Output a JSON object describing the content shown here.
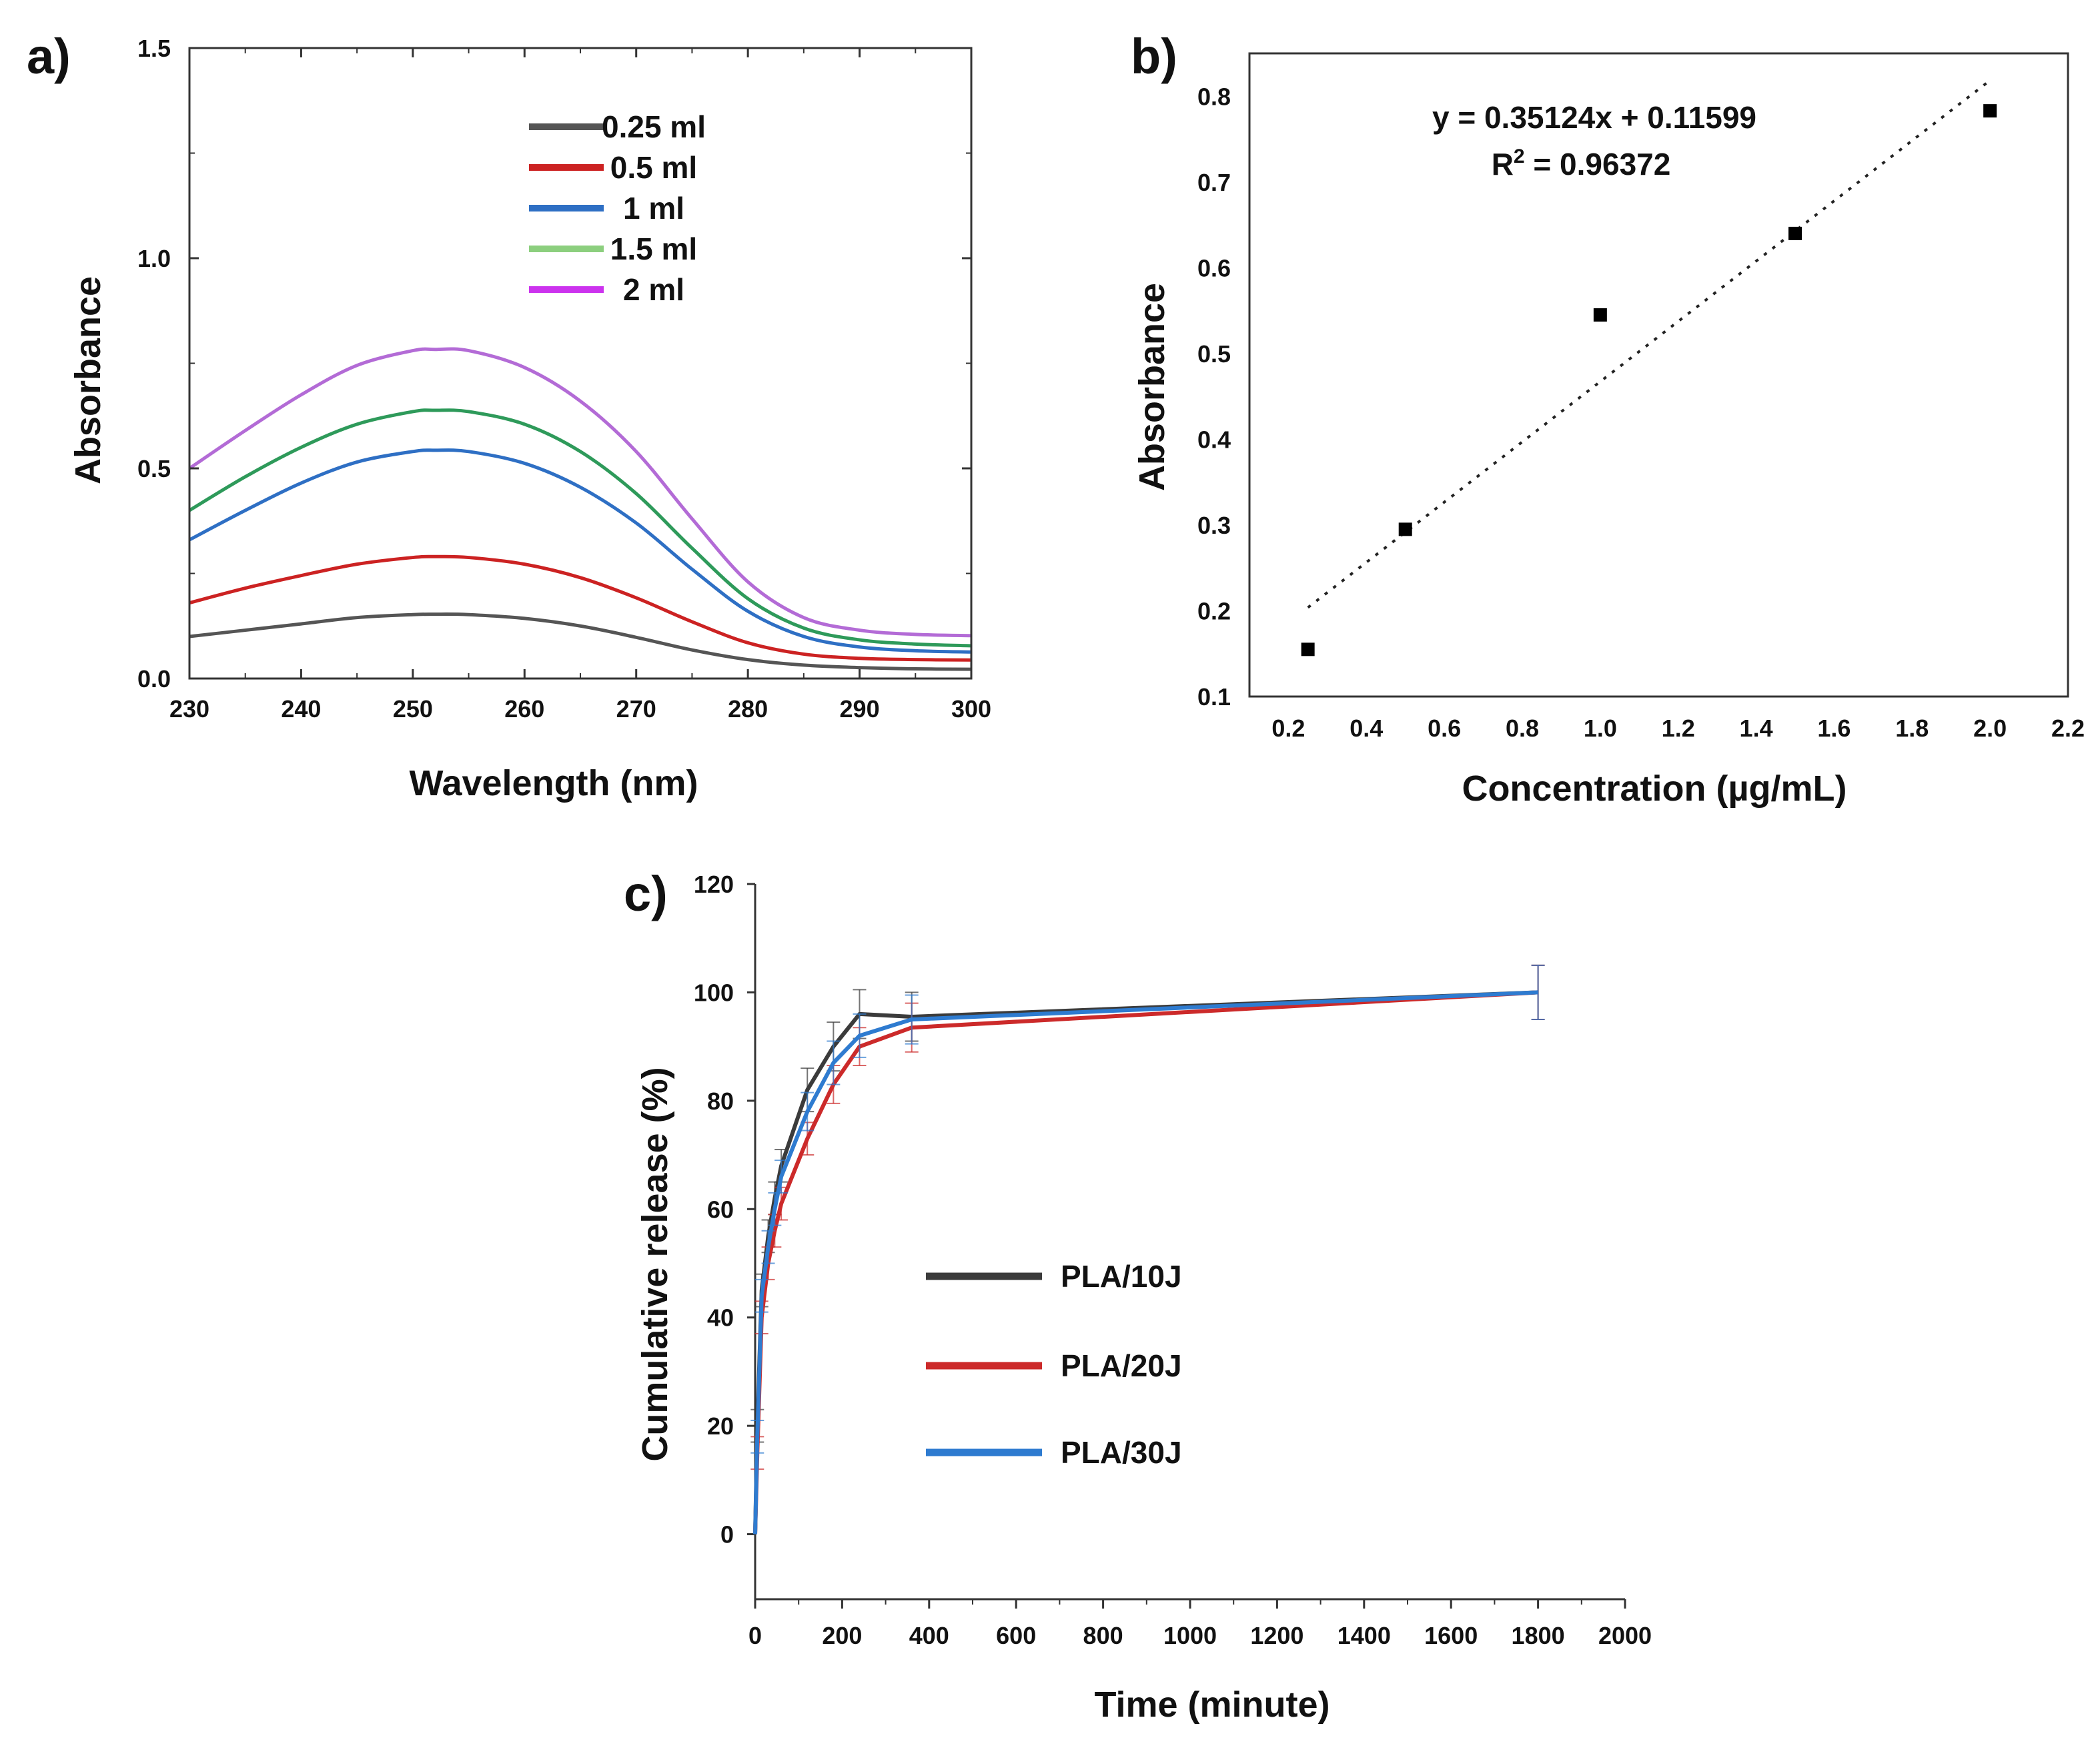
{
  "chart_data": [
    {
      "panel": "a)",
      "type": "line",
      "xlabel": "Wavelength (nm)",
      "ylabel": "Absorbance",
      "xlim": [
        230,
        300
      ],
      "ylim": [
        0.0,
        1.5
      ],
      "xticks": [
        230,
        240,
        250,
        260,
        270,
        280,
        290,
        300
      ],
      "yticks": [
        "0.0",
        "0.5",
        "1.0",
        "1.5"
      ],
      "legend_position": "top-center",
      "x": [
        230,
        235,
        240,
        245,
        250,
        252,
        255,
        260,
        265,
        270,
        275,
        280,
        285,
        290,
        295,
        300
      ],
      "series": [
        {
          "name": "0.25 ml",
          "color": "#555555",
          "values": [
            0.1,
            0.115,
            0.13,
            0.145,
            0.152,
            0.153,
            0.152,
            0.143,
            0.125,
            0.098,
            0.068,
            0.045,
            0.032,
            0.026,
            0.023,
            0.022
          ]
        },
        {
          "name": "0.5 ml",
          "color": "#cc2222",
          "values": [
            0.18,
            0.215,
            0.245,
            0.272,
            0.288,
            0.29,
            0.288,
            0.272,
            0.24,
            0.192,
            0.135,
            0.085,
            0.058,
            0.048,
            0.045,
            0.044
          ]
        },
        {
          "name": "1 ml",
          "color": "#2e6fc4",
          "values": [
            0.33,
            0.4,
            0.465,
            0.515,
            0.54,
            0.543,
            0.54,
            0.512,
            0.455,
            0.37,
            0.26,
            0.16,
            0.1,
            0.075,
            0.066,
            0.063
          ]
        },
        {
          "name": "1.5 ml",
          "color": "#2e9a5a",
          "legend_color": "#8ccf7e",
          "values": [
            0.4,
            0.48,
            0.55,
            0.605,
            0.635,
            0.638,
            0.635,
            0.605,
            0.54,
            0.44,
            0.31,
            0.19,
            0.12,
            0.092,
            0.082,
            0.078
          ]
        },
        {
          "name": "2 ml",
          "color": "#b36bd6",
          "legend_color": "#cc33ee",
          "values": [
            0.5,
            0.59,
            0.675,
            0.745,
            0.78,
            0.783,
            0.78,
            0.74,
            0.66,
            0.54,
            0.38,
            0.23,
            0.145,
            0.115,
            0.105,
            0.102
          ]
        }
      ]
    },
    {
      "panel": "b)",
      "type": "scatter",
      "xlabel": "Concentration  (µg/mL)",
      "ylabel": "Absorbance",
      "xlim": [
        0.1,
        2.2
      ],
      "ylim": [
        0.1,
        0.85
      ],
      "xticks": [
        "0.2",
        "0.4",
        "0.6",
        "0.8",
        "1.0",
        "1.2",
        "1.4",
        "1.6",
        "1.8",
        "2.0",
        "2.2"
      ],
      "yticks": [
        "0.1",
        "0.2",
        "0.3",
        "0.4",
        "0.5",
        "0.6",
        "0.7",
        "0.8"
      ],
      "x": [
        0.25,
        0.5,
        1.0,
        1.5,
        2.0
      ],
      "y": [
        0.155,
        0.295,
        0.545,
        0.64,
        0.783
      ],
      "fit": {
        "slope": 0.35124,
        "intercept": 0.11599,
        "equation": "y = 0.35124x + 0.11599",
        "r2_prefix": "R",
        "r2_sup": "2",
        "r2_value": " = 0.96372"
      }
    },
    {
      "panel": "c)",
      "type": "line",
      "xlabel": "Time (minute)",
      "ylabel": "Cumulative release (%)",
      "xlim": [
        0,
        2000
      ],
      "ylim": [
        -12,
        120
      ],
      "xticks": [
        0,
        200,
        400,
        600,
        800,
        1000,
        1200,
        1400,
        1600,
        1800,
        2000
      ],
      "yticks": [
        0,
        20,
        40,
        60,
        80,
        100,
        120
      ],
      "legend_position": "center-left",
      "x": [
        0,
        5,
        15,
        30,
        45,
        60,
        120,
        180,
        240,
        360,
        1800
      ],
      "series": [
        {
          "name": "PLA/10J",
          "color": "#3b3b3b",
          "values": [
            0,
            20,
            45,
            55,
            62,
            68,
            82,
            90,
            96,
            95.5,
            100
          ],
          "errors": [
            0,
            3,
            3,
            3,
            3,
            3,
            4,
            4.5,
            4.5,
            4.5,
            5
          ]
        },
        {
          "name": "PLA/20J",
          "color": "#cc2a2a",
          "values": [
            0,
            15,
            40,
            50,
            56,
            61,
            73,
            83,
            90,
            93.5,
            100
          ],
          "errors": [
            0,
            3,
            3,
            3,
            3,
            3,
            3,
            3.5,
            3.5,
            4.5,
            5
          ]
        },
        {
          "name": "PLA/30J",
          "color": "#2e7bd0",
          "values": [
            0,
            18,
            44,
            53,
            60,
            66,
            78,
            87,
            92,
            95,
            100
          ],
          "errors": [
            0,
            3,
            3,
            3,
            3,
            3,
            3.5,
            4,
            4,
            4.5,
            5
          ]
        }
      ]
    }
  ]
}
